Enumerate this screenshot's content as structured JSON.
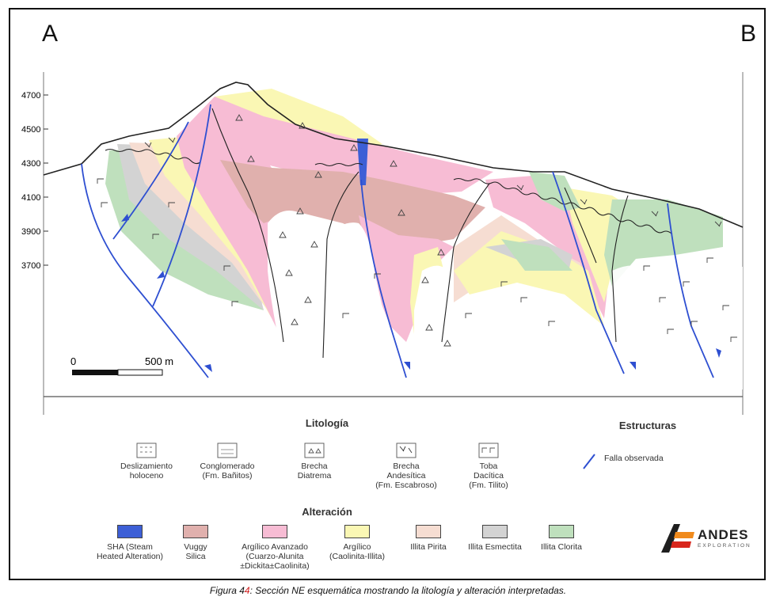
{
  "corners": {
    "left": "A",
    "right": "B"
  },
  "elevation_ticks": [
    "4700",
    "4500",
    "4300",
    "4100",
    "3900",
    "3700"
  ],
  "scale_bar": {
    "start_label": "0",
    "end_label": "500 m"
  },
  "legend": {
    "lithology_title": "Litología",
    "lithology_items": [
      {
        "name": "deslizamiento",
        "label": "Deslizamiento\nholoceno"
      },
      {
        "name": "conglomerado",
        "label": "Conglomerado\n(Fm. Bañitos)"
      },
      {
        "name": "brecha-diatrema",
        "label": "Brecha\nDiatrema"
      },
      {
        "name": "brecha-andesitica",
        "label": "Brecha\nAndesítica\n(Fm. Escabroso)"
      },
      {
        "name": "toba-dacitica",
        "label": "Toba\nDacítica\n(Fm. Tilito)"
      }
    ],
    "structures_title": "Estructuras",
    "structures_items": [
      {
        "name": "falla",
        "label": "Falla observada",
        "color": "#2e4fd1"
      }
    ],
    "alteration_title": "Alteración",
    "alteration_items": [
      {
        "name": "sha",
        "label": "SHA (Steam\nHeated Alteration)",
        "color": "#3d5fd6"
      },
      {
        "name": "vuggy",
        "label": "Vuggy\nSilica",
        "color": "#e0b0ad"
      },
      {
        "name": "argilico-avanzado",
        "label": "Argílico Avanzado\n(Cuarzo-Alunita\n±Dickita±Caolinita)",
        "color": "#f7bcd4"
      },
      {
        "name": "argilico",
        "label": "Argílico\n(Caolinita-Illita)",
        "color": "#faf7b4"
      },
      {
        "name": "illita-pirita",
        "label": "Illita Pirita",
        "color": "#f6ddd2"
      },
      {
        "name": "illita-esmectita",
        "label": "Illita Esmectita",
        "color": "#d3d3d3"
      },
      {
        "name": "illita-clorita",
        "label": "Illita Clorita",
        "color": "#bfe0bd"
      }
    ]
  },
  "logo": {
    "name": "ANDES",
    "sub": "EXPLORATION",
    "colors": {
      "dark": "#1f1f1f",
      "orange": "#f08a1c",
      "red": "#d8261c"
    }
  },
  "caption": {
    "prefix": "Figura 4",
    "highlight": "4",
    "text": ": Sección NE esquemática mostrando la litología y alteración interpretadas."
  }
}
